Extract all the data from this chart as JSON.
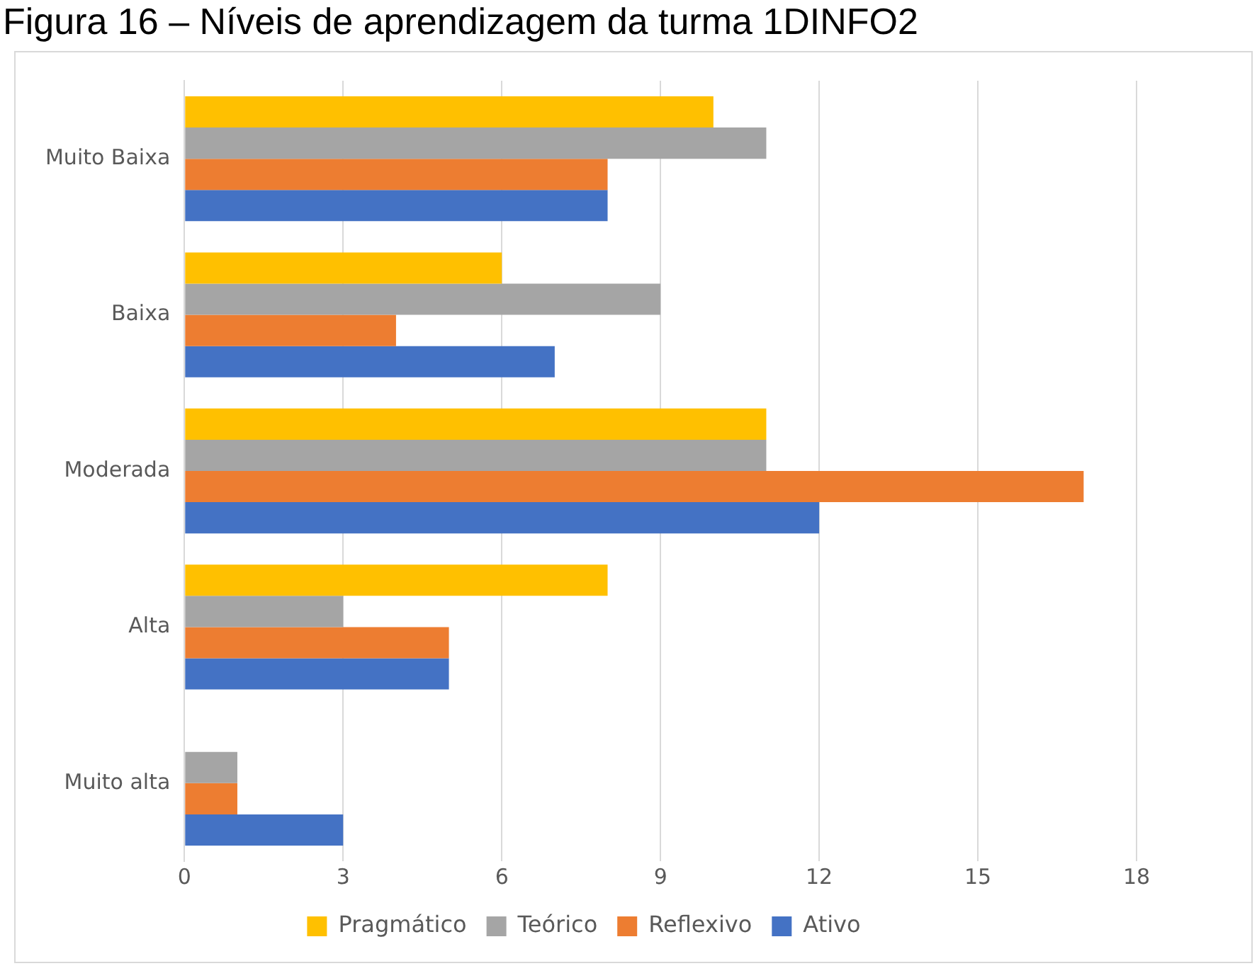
{
  "chart_data": {
    "type": "bar",
    "orientation": "horizontal",
    "title": "Figura 16 – Níveis de aprendizagem da turma 1DINFO2",
    "categories": [
      "Muito Baixa",
      "Baixa",
      "Moderada",
      "Alta",
      "Muito alta"
    ],
    "series": [
      {
        "name": "Pragmático",
        "color": "#ffc000",
        "values": [
          10,
          6,
          11,
          8,
          0
        ]
      },
      {
        "name": "Teórico",
        "color": "#a5a5a5",
        "values": [
          11,
          9,
          11,
          3,
          1
        ]
      },
      {
        "name": "Reflexivo",
        "color": "#ed7d31",
        "values": [
          8,
          4,
          17,
          5,
          1
        ]
      },
      {
        "name": "Ativo",
        "color": "#4472c4",
        "values": [
          8,
          7,
          12,
          5,
          3
        ]
      }
    ],
    "xlim": [
      0,
      18
    ],
    "xticks": [
      0,
      3,
      6,
      9,
      12,
      15,
      18
    ],
    "grid": "x",
    "legend": "bottom"
  }
}
